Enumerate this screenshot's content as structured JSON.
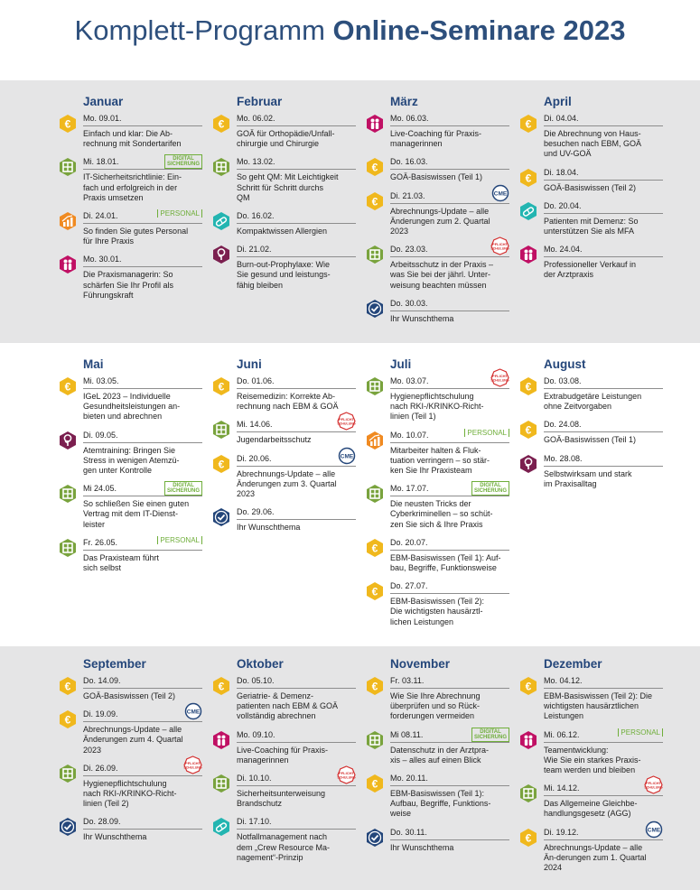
{
  "title": {
    "part1": "Komplett-Programm ",
    "part2": "Online-Seminare 2023"
  },
  "colors": {
    "gold": "#f0b81d",
    "green": "#79a33d",
    "magenta": "#c01064",
    "purple": "#7b1f4f",
    "orange": "#f08a21",
    "teal": "#23b5b1",
    "navy": "#24467a"
  },
  "badges": {
    "digital": [
      "DIGITAL",
      "SICHERUNG"
    ],
    "personal": "PERSONAL",
    "cme": "CME",
    "pflicht": [
      "PFLICHT",
      "SCHULUNG"
    ]
  },
  "months": [
    {
      "name": "Januar",
      "events": [
        {
          "date": "Mo. 09.01.",
          "text": "Einfach und klar: Die Ab-\nrechnung mit Sondertarifen",
          "icon": "euro-icon",
          "color": "gold"
        },
        {
          "date": "Mi. 18.01.",
          "text": "IT-Sicherheitsrichtlinie: Ein-\nfach und erfolgreich in der\nPraxis umsetzen",
          "icon": "puzzle-icon",
          "color": "green",
          "badge": "digital"
        },
        {
          "date": "Di. 24.01.",
          "text": "So finden Sie gutes Personal\nfür Ihre Praxis",
          "icon": "growth-icon",
          "color": "orange",
          "badge": "personal"
        },
        {
          "date": "Mo. 30.01.",
          "text": "Die Praxismanagerin: So\nschärfen Sie Ihr Profil als\nFührungskraft",
          "icon": "people-icon",
          "color": "magenta"
        }
      ]
    },
    {
      "name": "Februar",
      "events": [
        {
          "date": "Mo. 06.02.",
          "text": "GOÄ für Orthopädie/Unfall-\nchirurgie und Chirurgie",
          "icon": "euro-icon",
          "color": "gold"
        },
        {
          "date": "Mo. 13.02.",
          "text": "So geht QM: Mit Leichtigkeit\nSchritt für Schritt durchs\nQM",
          "icon": "puzzle-icon",
          "color": "green"
        },
        {
          "date": "Do. 16.02.",
          "text": "Kompaktwissen Allergien",
          "icon": "pill-icon",
          "color": "teal"
        },
        {
          "date": "Di. 21.02.",
          "text": "Burn-out-Prophylaxe: Wie\nSie gesund und leistungs-\nfähig bleiben",
          "icon": "tree-icon",
          "color": "purple"
        }
      ]
    },
    {
      "name": "März",
      "events": [
        {
          "date": "Mo. 06.03.",
          "text": "Live-Coaching für Praxis-\nmanagerinnen",
          "icon": "people-icon",
          "color": "magenta"
        },
        {
          "date": "Do. 16.03.",
          "text": "GOÄ-Basiswissen (Teil 1)",
          "icon": "euro-icon",
          "color": "gold"
        },
        {
          "date": "Di. 21.03.",
          "text": "Abrechnungs-Update – alle\nÄnderungen zum 2. Quartal\n2023",
          "icon": "euro-icon",
          "color": "gold",
          "badge": "cme"
        },
        {
          "date": "Do. 23.03.",
          "text": "Arbeitsschutz in der Praxis –\nwas Sie bei der jährl. Unter-\nweisung beachten müssen",
          "icon": "puzzle-icon",
          "color": "green",
          "badge": "pflicht"
        },
        {
          "date": "Do. 30.03.",
          "text": "Ihr Wunschthema",
          "icon": "check-icon",
          "color": "navy"
        }
      ]
    },
    {
      "name": "April",
      "events": [
        {
          "date": "Di. 04.04.",
          "text": "Die Abrechnung von Haus-\nbesuchen nach EBM, GOÄ\nund UV-GOÄ",
          "icon": "euro-icon",
          "color": "gold"
        },
        {
          "date": "Di. 18.04.",
          "text": "GOÄ-Basiswissen (Teil 2)",
          "icon": "euro-icon",
          "color": "gold"
        },
        {
          "date": "Do. 20.04.",
          "text": "Patienten mit Demenz: So\nunterstützen Sie als MFA",
          "icon": "pill-icon",
          "color": "teal"
        },
        {
          "date": "Mo. 24.04.",
          "text": "Professioneller Verkauf in\nder Arztpraxis",
          "icon": "people-icon",
          "color": "magenta"
        }
      ]
    },
    {
      "name": "Mai",
      "events": [
        {
          "date": "Mi. 03.05.",
          "text": "IGeL 2023 – Individuelle\nGesundheitsleistungen an-\nbieten und abrechnen",
          "icon": "euro-icon",
          "color": "gold"
        },
        {
          "date": "Di. 09.05.",
          "text": "Atemtraining: Bringen Sie\nStress in wenigen Atemzü-\ngen unter Kontrolle",
          "icon": "tree-icon",
          "color": "purple"
        },
        {
          "date": "Mi 24.05.",
          "text": "So schließen Sie einen guten\nVertrag mit dem IT-Dienst-\nleister",
          "icon": "puzzle-icon",
          "color": "green",
          "badge": "digital"
        },
        {
          "date": "Fr. 26.05.",
          "text": "Das Praxisteam führt\nsich selbst",
          "icon": "puzzle-icon",
          "color": "green",
          "badge": "personal"
        }
      ]
    },
    {
      "name": "Juni",
      "events": [
        {
          "date": "Do. 01.06.",
          "text": "Reisemedizin: Korrekte Ab-\nrechnung nach EBM & GOÄ",
          "icon": "euro-icon",
          "color": "gold"
        },
        {
          "date": "Mi. 14.06.",
          "text": "Jugendarbeitsschutz",
          "icon": "puzzle-icon",
          "color": "green",
          "badge": "pflicht"
        },
        {
          "date": "Di. 20.06.",
          "text": "Abrechnungs-Update – alle\nÄnderungen zum 3. Quartal\n2023",
          "icon": "euro-icon",
          "color": "gold",
          "badge": "cme"
        },
        {
          "date": "Do. 29.06.",
          "text": "Ihr Wunschthema",
          "icon": "check-icon",
          "color": "navy"
        }
      ]
    },
    {
      "name": "Juli",
      "events": [
        {
          "date": "Mo. 03.07.",
          "text": "Hygienepflichtschulung\nnach RKI-/KRINKO-Richt-\nlinien (Teil 1)",
          "icon": "puzzle-icon",
          "color": "green",
          "badge": "pflicht"
        },
        {
          "date": "Mo. 10.07.",
          "text": "Mitarbeiter halten & Fluk-\ntuation verringern – so stär-\nken Sie Ihr Praxisteam",
          "icon": "growth-icon",
          "color": "orange",
          "badge": "personal"
        },
        {
          "date": "Mo. 17.07.",
          "text": "Die neusten Tricks der\nCyberkriminellen – so schüt-\nzen Sie sich & Ihre Praxis",
          "icon": "puzzle-icon",
          "color": "green",
          "badge": "digital"
        },
        {
          "date": "Do. 20.07.",
          "text": "EBM-Basiswissen (Teil 1): Auf-\nbau, Begriffe, Funktionsweise",
          "icon": "euro-icon",
          "color": "gold"
        },
        {
          "date": "Do. 27.07.",
          "text": "EBM-Basiswissen (Teil 2):\nDie wichtigsten hausärztl-\nlichen Leistungen",
          "icon": "euro-icon",
          "color": "gold"
        }
      ]
    },
    {
      "name": "August",
      "events": [
        {
          "date": "Do. 03.08.",
          "text": "Extrabudgetäre Leistungen\nohne Zeitvorgaben",
          "icon": "euro-icon",
          "color": "gold"
        },
        {
          "date": "Do. 24.08.",
          "text": "GOÄ-Basiswissen (Teil 1)",
          "icon": "euro-icon",
          "color": "gold"
        },
        {
          "date": "Mo. 28.08.",
          "text": "Selbstwirksam und stark\nim Praxisalltag",
          "icon": "tree-icon",
          "color": "purple"
        }
      ]
    },
    {
      "name": "September",
      "events": [
        {
          "date": "Do. 14.09.",
          "text": "GOÄ-Basiswissen (Teil 2)",
          "icon": "euro-icon",
          "color": "gold"
        },
        {
          "date": "Di. 19.09.",
          "text": "Abrechnungs-Update – alle\nÄnderungen zum 4. Quartal\n2023",
          "icon": "euro-icon",
          "color": "gold",
          "badge": "cme"
        },
        {
          "date": "Di. 26.09.",
          "text": "Hygienepflichtschulung\nnach RKI-/KRINKO-Richt-\nlinien (Teil 2)",
          "icon": "puzzle-icon",
          "color": "green",
          "badge": "pflicht"
        },
        {
          "date": "Do. 28.09.",
          "text": "Ihr Wunschthema",
          "icon": "check-icon",
          "color": "navy"
        }
      ]
    },
    {
      "name": "Oktober",
      "events": [
        {
          "date": "Do. 05.10.",
          "text": "Geriatrie- & Demenz-\npatienten nach EBM & GOÄ\nvollständig abrechnen",
          "icon": "euro-icon",
          "color": "gold"
        },
        {
          "date": "Mo. 09.10.",
          "text": "Live-Coaching für Praxis-\nmanagerinnen",
          "icon": "people-icon",
          "color": "magenta"
        },
        {
          "date": "Di. 10.10.",
          "text": "Sicherheitsunterweisung\nBrandschutz",
          "icon": "puzzle-icon",
          "color": "green",
          "badge": "pflicht"
        },
        {
          "date": "Di. 17.10.",
          "text": "Notfallmanagement nach\ndem „Crew Resource Ma-\nnagement“-Prinzip",
          "icon": "pill-icon",
          "color": "teal"
        }
      ]
    },
    {
      "name": "November",
      "events": [
        {
          "date": "Fr. 03.11.",
          "text": "Wie Sie Ihre Abrechnung\nüberprüfen und so Rück-\nforderungen vermeiden",
          "icon": "euro-icon",
          "color": "gold"
        },
        {
          "date": "Mi 08.11.",
          "text": "Datenschutz in der Arztpra-\nxis – alles auf einen Blick",
          "icon": "puzzle-icon",
          "color": "green",
          "badge": "digital"
        },
        {
          "date": "Mo. 20.11.",
          "text": "EBM-Basiswissen (Teil 1):\nAufbau, Begriffe, Funktions-\nweise",
          "icon": "euro-icon",
          "color": "gold"
        },
        {
          "date": "Do. 30.11.",
          "text": "Ihr Wunschthema",
          "icon": "check-icon",
          "color": "navy"
        }
      ]
    },
    {
      "name": "Dezember",
      "events": [
        {
          "date": "Mo. 04.12.",
          "text": "EBM-Basiswissen (Teil 2): Die\nwichtigsten hausärztlichen\nLeistungen",
          "icon": "euro-icon",
          "color": "gold"
        },
        {
          "date": "Mi. 06.12.",
          "text": "Teamentwicklung:\nWie Sie ein starkes Praxis-\nteam werden und bleiben",
          "icon": "people-icon",
          "color": "magenta",
          "badge": "personal"
        },
        {
          "date": "Mi. 14.12.",
          "text": "Das Allgemeine Gleichbe-\nhandlungsgesetz (AGG)",
          "icon": "puzzle-icon",
          "color": "green",
          "badge": "pflicht"
        },
        {
          "date": "Di. 19.12.",
          "text": "Abrechnungs-Update – alle\nÄn-derungen zum 1. Quartal\n2024",
          "icon": "euro-icon",
          "color": "gold",
          "badge": "cme"
        }
      ]
    }
  ]
}
